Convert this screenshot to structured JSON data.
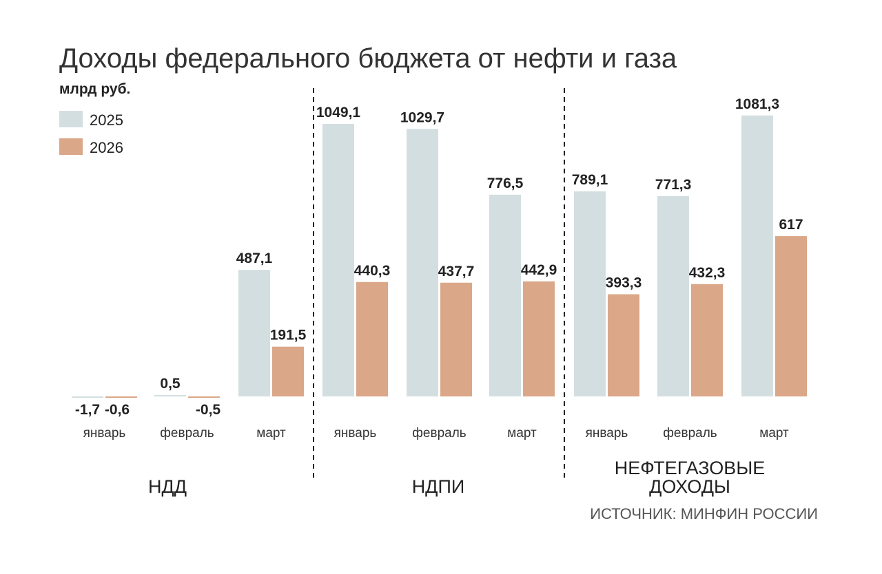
{
  "colors": {
    "2025": "#d3dee0",
    "2026": "#daa788"
  },
  "chart_data": {
    "type": "bar",
    "title": "Доходы федерального бюджета от нефти и газа",
    "unit": "млрд руб.",
    "legend": {
      "position": "top-left",
      "entries": [
        "2025",
        "2026"
      ]
    },
    "source": "ИСТОЧНИК: МИНФИН РОССИИ",
    "grid": false,
    "groups": [
      {
        "name": "НДД",
        "categories": [
          "январь",
          "февраль",
          "март"
        ],
        "series": [
          {
            "name": "2025",
            "values": [
              -1.7,
              0.5,
              487.1
            ],
            "labels": [
              "-1,7",
              "0,5",
              "487,1"
            ]
          },
          {
            "name": "2026",
            "values": [
              -0.6,
              -0.5,
              191.5
            ],
            "labels": [
              "-0,6",
              "-0,5",
              "191,5"
            ]
          }
        ]
      },
      {
        "name": "НДПИ",
        "categories": [
          "январь",
          "февраль",
          "март"
        ],
        "series": [
          {
            "name": "2025",
            "values": [
              1049.1,
              1029.7,
              776.5
            ],
            "labels": [
              "1049,1",
              "1029,7",
              "776,5"
            ]
          },
          {
            "name": "2026",
            "values": [
              440.3,
              437.7,
              442.9
            ],
            "labels": [
              "440,3",
              "437,7",
              "442,9"
            ]
          }
        ]
      },
      {
        "name": "НЕФТЕГАЗОВЫЕ ДОХОДЫ",
        "name_lines": [
          "НЕФТЕГАЗОВЫЕ",
          "ДОХОДЫ"
        ],
        "categories": [
          "январь",
          "февраль",
          "март"
        ],
        "series": [
          {
            "name": "2025",
            "values": [
              789.1,
              771.3,
              1081.3
            ],
            "labels": [
              "789,1",
              "771,3",
              "1081,3"
            ]
          },
          {
            "name": "2026",
            "values": [
              393.3,
              432.3,
              617
            ],
            "labels": [
              "393,3",
              "432,3",
              "617"
            ]
          }
        ]
      }
    ]
  }
}
